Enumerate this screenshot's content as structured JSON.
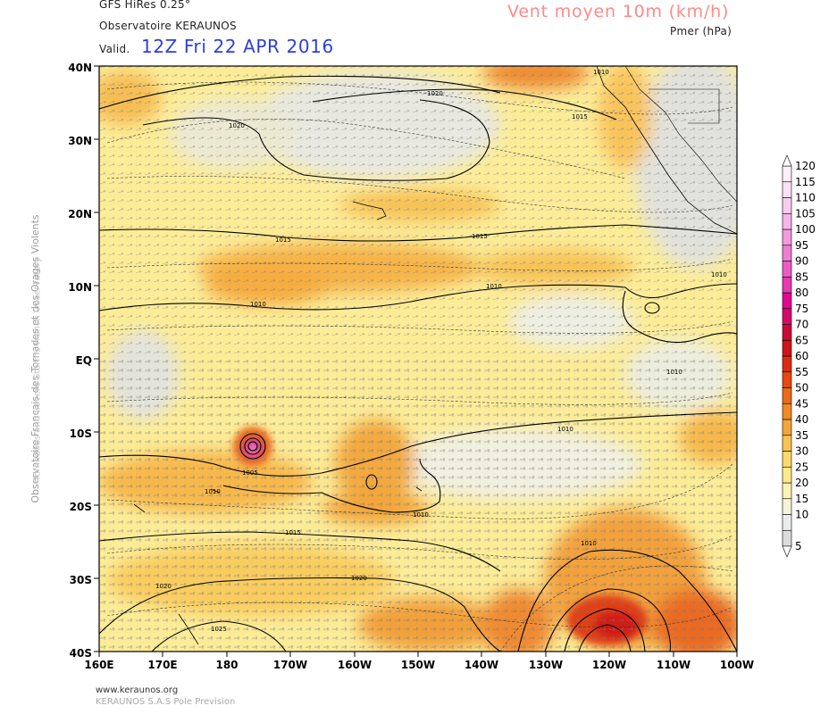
{
  "header": {
    "model": "GFS HiRes 0.25°",
    "observatory": "Observatoire KERAUNOS",
    "valid_label": "Valid.",
    "valid_time": "12Z Fri 22 APR 2016",
    "field_title": "Vent moyen 10m (km/h)",
    "field_subtitle": "Pmer (hPa)"
  },
  "side_text": {
    "line1": "Observatoire Francais des Tornades et des Orages Violents",
    "line2": "Tornadoes and Severe Storms French Observatory"
  },
  "footer": {
    "url": "www.keraunos.org",
    "company": "KERAUNOS S.A.S Pole Prevision"
  },
  "map": {
    "lat_ticks": [
      "40N",
      "30N",
      "20N",
      "10N",
      "EQ",
      "10S",
      "20S",
      "30S",
      "40S"
    ],
    "lon_ticks": [
      "160E",
      "170E",
      "180",
      "170W",
      "160W",
      "150W",
      "140W",
      "130W",
      "120W",
      "110W",
      "100W"
    ],
    "isobar_labels": [
      {
        "text": "1010"
      },
      {
        "text": "1020"
      },
      {
        "text": "1015"
      },
      {
        "text": "1020"
      },
      {
        "text": "1015"
      },
      {
        "text": "1015"
      },
      {
        "text": "1010"
      },
      {
        "text": "1010"
      },
      {
        "text": "1010"
      },
      {
        "text": "1010"
      },
      {
        "text": "1010"
      },
      {
        "text": "1005"
      },
      {
        "text": "1010"
      },
      {
        "text": "1010"
      },
      {
        "text": "1015"
      },
      {
        "text": "1020"
      },
      {
        "text": "1020"
      },
      {
        "text": "1025"
      },
      {
        "text": "1010"
      }
    ]
  },
  "legend": {
    "values": [
      "5",
      "10",
      "15",
      "20",
      "25",
      "30",
      "35",
      "40",
      "45",
      "50",
      "55",
      "60",
      "65",
      "70",
      "75",
      "80",
      "85",
      "90",
      "95",
      "100",
      "105",
      "110",
      "115",
      "120"
    ],
    "colors": [
      "#dcdcdc",
      "#ebebeb",
      "#f6f3d6",
      "#fbf2b4",
      "#fceb8a",
      "#fbd96c",
      "#f9c354",
      "#f5a63a",
      "#ef8a24",
      "#ea6a16",
      "#e44a10",
      "#db2c10",
      "#d01414",
      "#cc0a36",
      "#d6086a",
      "#e00890",
      "#e63ab0",
      "#ea5cc4",
      "#ee7ed2",
      "#f39ade",
      "#f6b6e8",
      "#f9cdef",
      "#fbe2f6",
      "#fdf0fb"
    ]
  }
}
